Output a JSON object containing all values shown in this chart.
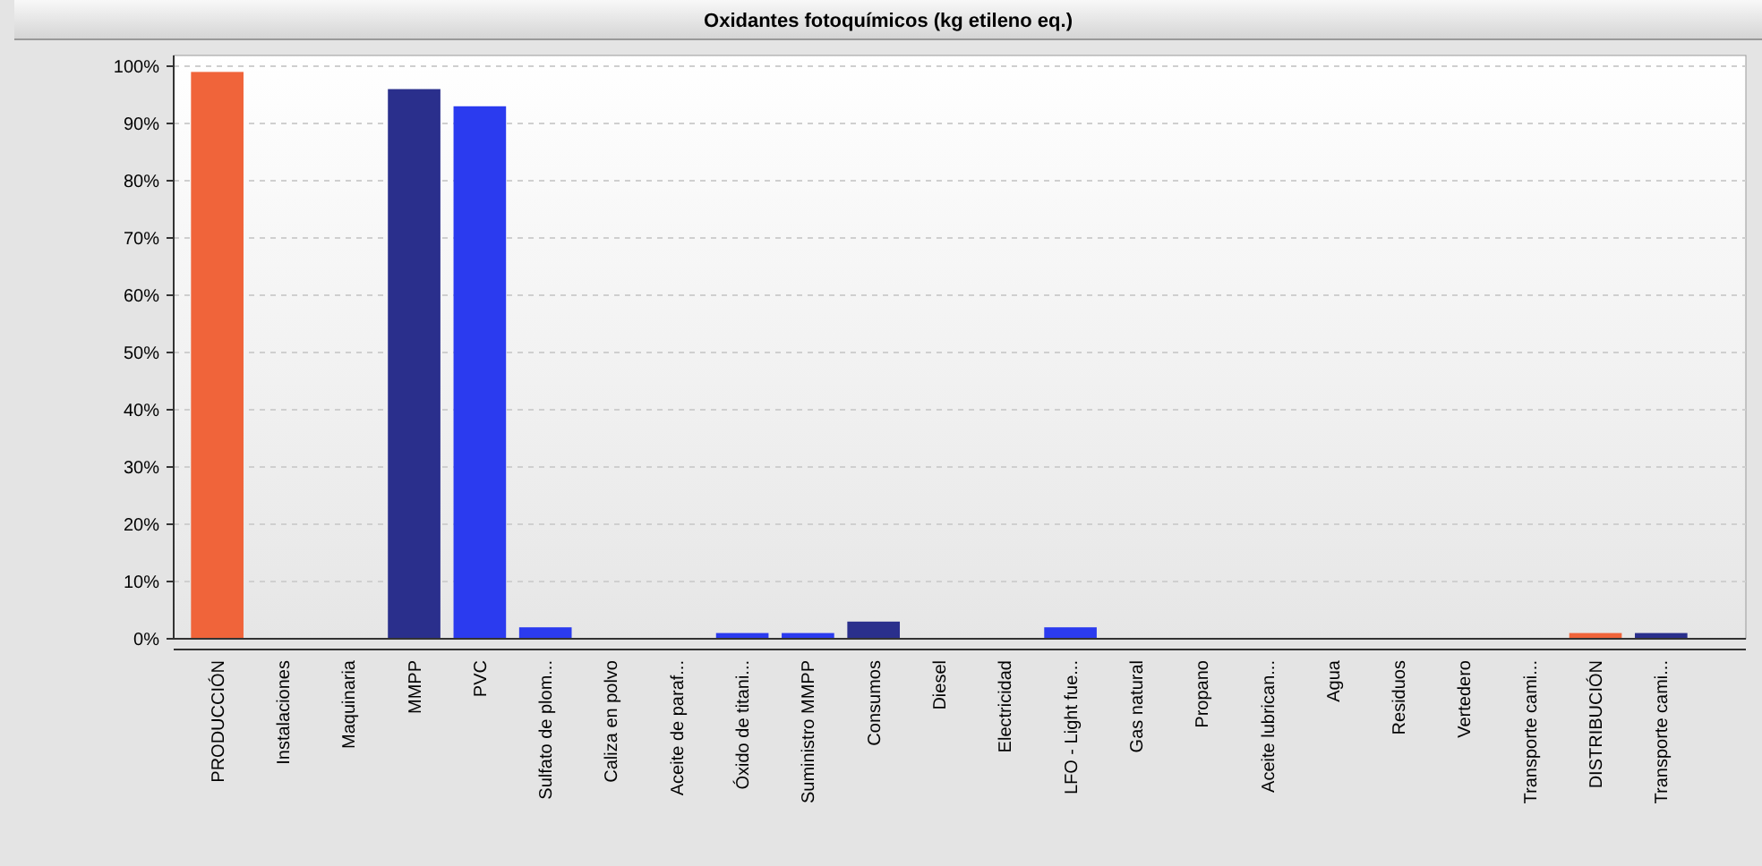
{
  "chart_data": {
    "type": "bar",
    "title": "Oxidantes fotoquímicos (kg etileno eq.)",
    "categories": [
      "PRODUCCIÓN",
      "Instalaciones",
      "Maquinaria",
      "MMPP",
      "PVC",
      "Sulfato de plom...",
      "Caliza en polvo",
      "Aceite de paraf...",
      "Óxido de titani...",
      "Suministro MMPP",
      "Consumos",
      "Diesel",
      "Electricidad",
      "LFO - Light fue...",
      "Gas natural",
      "Propano",
      "Aceite lubrican...",
      "Agua",
      "Residuos",
      "Vertedero",
      "Transporte cami...",
      "DISTRIBUCIÓN",
      "Transporte cami..."
    ],
    "values": [
      99,
      0,
      0,
      96,
      93,
      2,
      0,
      0,
      1,
      1,
      3,
      0,
      0,
      2,
      0,
      0,
      0,
      0,
      0,
      0,
      0,
      1,
      1
    ],
    "colors": [
      "#f0643a",
      "#2b3bef",
      "#2b3bef",
      "#2a2f8c",
      "#2b3bef",
      "#2b3bef",
      "#2b3bef",
      "#2b3bef",
      "#2b3bef",
      "#2b3bef",
      "#2a2f8c",
      "#2b3bef",
      "#2b3bef",
      "#2b3bef",
      "#2b3bef",
      "#2b3bef",
      "#2b3bef",
      "#2b3bef",
      "#2b3bef",
      "#2b3bef",
      "#2b3bef",
      "#f0643a",
      "#2a2f8c"
    ],
    "ylim": [
      0,
      100
    ],
    "yticks": [
      {
        "value": 0,
        "label": "0%"
      },
      {
        "value": 10,
        "label": "10%"
      },
      {
        "value": 20,
        "label": "20%"
      },
      {
        "value": 30,
        "label": "30%"
      },
      {
        "value": 40,
        "label": "40%"
      },
      {
        "value": 50,
        "label": "50%"
      },
      {
        "value": 60,
        "label": "60%"
      },
      {
        "value": 70,
        "label": "70%"
      },
      {
        "value": 80,
        "label": "80%"
      },
      {
        "value": 90,
        "label": "90%"
      },
      {
        "value": 100,
        "label": "100%"
      }
    ],
    "grid": "y"
  }
}
